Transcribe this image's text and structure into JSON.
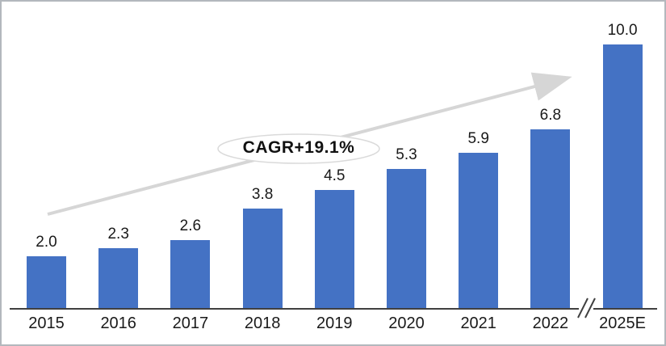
{
  "chart_data": {
    "type": "bar",
    "title": "",
    "xlabel": "",
    "ylabel": "",
    "categories": [
      "2015",
      "2016",
      "2017",
      "2018",
      "2019",
      "2020",
      "2021",
      "2022",
      "2025E"
    ],
    "values": [
      2.0,
      2.3,
      2.6,
      3.8,
      4.5,
      5.3,
      5.9,
      6.8,
      10.0
    ],
    "value_labels": [
      "2.0",
      "2.3",
      "2.6",
      "3.8",
      "4.5",
      "5.3",
      "5.9",
      "6.8",
      "10.0"
    ],
    "annotation": "CAGR+19.1%",
    "axis_break_mark": "//",
    "ylim": [
      0,
      10.5
    ],
    "grid": false,
    "legend": false,
    "bar_color": "#4472C4",
    "label_color": "#1a1a1a",
    "axis_color": "#404040",
    "arrow_color": "#d6d6d6",
    "ellipse_stroke_color": "#dadada"
  }
}
